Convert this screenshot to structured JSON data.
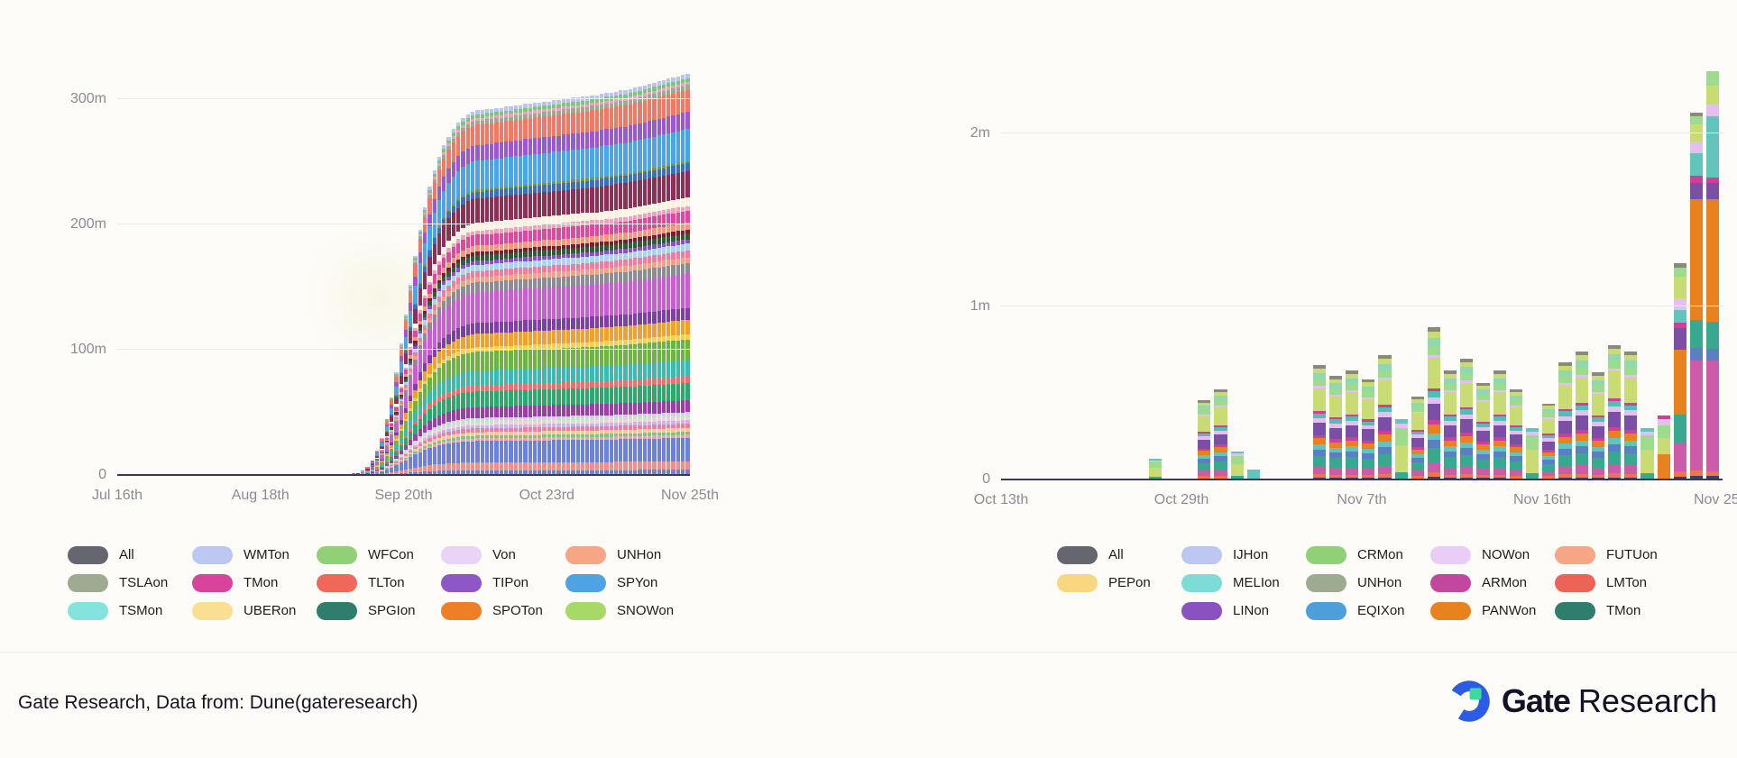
{
  "page": {
    "background": "#fdfcf8"
  },
  "footer": {
    "source_text": "Gate Research, Data from: Dune(gateresearch)",
    "logo": {
      "brand_bold": "Gate",
      "brand_regular": "Research"
    },
    "colors": {
      "logo_blue": "#2c5ce6",
      "logo_green": "#3bdb9e",
      "text": "#131325"
    }
  },
  "chart_data": [
    {
      "id": "cumulative-volume",
      "type": "bar",
      "stacked": true,
      "title": "",
      "y_unit": "millions",
      "ylim": [
        0,
        332
      ],
      "grid": "horizontal",
      "legend_position": "bottom",
      "axis_color": "#3a3a52",
      "tick_text_color": "#8b8b93",
      "y_ticks": [
        {
          "v": 0,
          "label": "0"
        },
        {
          "v": 100,
          "label": "100m"
        },
        {
          "v": 200,
          "label": "200m"
        },
        {
          "v": 300,
          "label": "300m"
        }
      ],
      "x_tick_labels": [
        "Jul 16th",
        "Aug 18th",
        "Sep 20th",
        "Oct 23rd",
        "Nov 25th"
      ],
      "legend_rows": [
        [
          {
            "label": "All",
            "color": "#66666f"
          },
          {
            "label": "WMTon",
            "color": "#bcc8f2"
          },
          {
            "label": "WFCon",
            "color": "#90d077"
          },
          {
            "label": "Von",
            "color": "#e9d4f8"
          },
          {
            "label": "UNHon",
            "color": "#f6a585"
          }
        ],
        [
          {
            "label": "TSLAon",
            "color": "#9dac90"
          },
          {
            "label": "TMon",
            "color": "#d8449c"
          },
          {
            "label": "TLTon",
            "color": "#f0685a"
          },
          {
            "label": "TIPon",
            "color": "#8f56c8"
          },
          {
            "label": "SPYon",
            "color": "#4da3e3"
          }
        ],
        [
          {
            "label": "TSMon",
            "color": "#82e4dc"
          },
          {
            "label": "UBERon",
            "color": "#fadf92"
          },
          {
            "label": "SPGIon",
            "color": "#2f7d6d"
          },
          {
            "label": "SPOTon",
            "color": "#ef7f26"
          },
          {
            "label": "SNOWon",
            "color": "#a6d966"
          }
        ]
      ],
      "totals_m": [
        0,
        0,
        0,
        0,
        0,
        0,
        0,
        0,
        0,
        0,
        0,
        0,
        0,
        0,
        0,
        0,
        0,
        0,
        0,
        0,
        0,
        0,
        0,
        0,
        0,
        0,
        0,
        0,
        0,
        0,
        0,
        0,
        0,
        0,
        0,
        0,
        0,
        0,
        0,
        0,
        0,
        0,
        0,
        0,
        0,
        0.3,
        0.5,
        0.8,
        1.2,
        1.5,
        2,
        4,
        7,
        12,
        20,
        30,
        45,
        62,
        82,
        105,
        128,
        152,
        175,
        196,
        214,
        230,
        243,
        254,
        263,
        270,
        276,
        281,
        285,
        288,
        290,
        291,
        291,
        292,
        292,
        293,
        293,
        294,
        294,
        295,
        295,
        296,
        296,
        297,
        297,
        298,
        298,
        299,
        299,
        300,
        300,
        301,
        301,
        302,
        302,
        303,
        303,
        304,
        305,
        305,
        306,
        307,
        307,
        308,
        309,
        310,
        311,
        312,
        313,
        314,
        315,
        316,
        317,
        318,
        319,
        320
      ],
      "bands": [
        [
          "#6e81d8",
          0.012
        ],
        [
          "#ee8f8f",
          0.02
        ],
        [
          "#6e81d8",
          0.055
        ],
        [
          "#f2a0b8",
          0.007
        ],
        [
          "#7ac87a",
          0.007
        ],
        [
          "#f5c89a",
          0.009
        ],
        [
          "#ee7fa0",
          0.01
        ],
        [
          "#c8b4ee",
          0.008
        ],
        [
          "#f5d0dc",
          0.007
        ],
        [
          "#bfe8c0",
          0.006
        ],
        [
          "#d8c8f0",
          0.006
        ],
        [
          "#9b3fa8",
          0.028
        ],
        [
          "#2fa86e",
          0.04
        ],
        [
          "#f26d6d",
          0.016
        ],
        [
          "#3fb8ae",
          0.038
        ],
        [
          "#6fb344",
          0.048
        ],
        [
          "#f2d052",
          0.012
        ],
        [
          "#f0a030",
          0.034
        ],
        [
          "#7d3fa8",
          0.028
        ],
        [
          "#c75fd0",
          0.08
        ],
        [
          "#8c8c94",
          0.024
        ],
        [
          "#f5a088",
          0.014
        ],
        [
          "#f27ba0",
          0.016
        ],
        [
          "#a8d4f0",
          0.016
        ],
        [
          "#8a4fc8",
          0.01
        ],
        [
          "#2f5d3a",
          0.014
        ],
        [
          "#7a1f2e",
          0.009
        ],
        [
          "#f4977c",
          0.016
        ],
        [
          "#e0489e",
          0.028
        ],
        [
          "#f2a0c0",
          0.011
        ],
        [
          "#fdf3e0",
          0.02
        ],
        [
          "#8e2f55",
          0.062
        ],
        [
          "#3c6fbe",
          0.018
        ],
        [
          "#7a9a3a",
          0.005
        ],
        [
          "#4da3e3",
          0.075
        ],
        [
          "#9b59d0",
          0.04
        ],
        [
          "#f07867",
          0.052
        ],
        [
          "#9cab8f",
          0.011
        ],
        [
          "#f2a0c0",
          0.007
        ],
        [
          "#7ac87a",
          0.009
        ],
        [
          "#b8c4f2",
          0.01
        ]
      ]
    },
    {
      "id": "daily-volume",
      "type": "bar",
      "stacked": true,
      "title": "",
      "y_unit": "millions",
      "ylim": [
        0,
        2.45
      ],
      "grid": "horizontal",
      "legend_position": "bottom",
      "axis_color": "#3a3a52",
      "tick_text_color": "#8b8b93",
      "y_ticks": [
        {
          "v": 0,
          "label": "0"
        },
        {
          "v": 1,
          "label": "1m"
        },
        {
          "v": 2,
          "label": "2m"
        }
      ],
      "x_tick_labels": [
        "Oct 13th",
        "Oct 29th",
        "Nov 7th",
        "Nov 16th",
        "Nov 25th"
      ],
      "legend_rows": [
        [
          {
            "label": "All",
            "color": "#66666f"
          },
          {
            "label": "IJHon",
            "color": "#bcc8f2"
          },
          {
            "label": "CRMon",
            "color": "#90d077"
          },
          {
            "label": "NOWon",
            "color": "#e9cdf7"
          },
          {
            "label": "FUTUon",
            "color": "#f6a585"
          }
        ],
        [
          {
            "label": "PEPon",
            "color": "#f8d77e"
          },
          {
            "label": "MELIon",
            "color": "#7edcd6"
          },
          {
            "label": "UNHon",
            "color": "#9dac90"
          },
          {
            "label": "ARMon",
            "color": "#c4479e"
          },
          {
            "label": "LMTon",
            "color": "#ee6358"
          }
        ],
        [
          null,
          {
            "label": "LINon",
            "color": "#8a52c0"
          },
          {
            "label": "EQIXon",
            "color": "#4d9fdb"
          },
          {
            "label": "PANWon",
            "color": "#e8821e"
          },
          {
            "label": "TMon",
            "color": "#2f7d6d"
          }
        ]
      ],
      "totals_m": [
        0,
        0,
        0,
        0,
        0,
        0,
        0,
        0,
        0,
        0.12,
        0,
        0,
        0.46,
        0.52,
        0.16,
        0.06,
        0,
        0,
        0,
        0.66,
        0.6,
        0.63,
        0.58,
        0.72,
        0.35,
        0.48,
        0.88,
        0.63,
        0.7,
        0.56,
        0.63,
        0.52,
        0.3,
        0.44,
        0.68,
        0.74,
        0.62,
        0.78,
        0.74,
        0.3,
        0.37,
        1.25,
        2.12,
        2.36
      ],
      "default_mix": [
        [
          "#3a3f66",
          0.015
        ],
        [
          "#f2744f",
          0.03
        ],
        [
          "#cc5ca8",
          0.065
        ],
        [
          "#38a88e",
          0.095
        ],
        [
          "#5b7fc4",
          0.055
        ],
        [
          "#62c4bc",
          0.045
        ],
        [
          "#e8821e",
          0.055
        ],
        [
          "#cf3f96",
          0.03
        ],
        [
          "#7b4fa6",
          0.11
        ],
        [
          "#e3c0f0",
          0.04
        ],
        [
          "#52bfb4",
          0.04
        ],
        [
          "#cf3f96",
          0.02
        ],
        [
          "#c9dc74",
          0.2
        ],
        [
          "#e3c0f0",
          0.02
        ],
        [
          "#9cdc8c",
          0.06
        ],
        [
          "#8fd8b0",
          0.05
        ],
        [
          "#c9dc74",
          0.04
        ],
        [
          "#8a8a7a",
          0.03
        ]
      ],
      "mixes": {
        "small_green": [
          [
            "#3a3f66",
            0.02
          ],
          [
            "#38a88e",
            0.1
          ],
          [
            "#c9dc74",
            0.45
          ],
          [
            "#9cdc8c",
            0.28
          ],
          [
            "#e3c0f0",
            0.08
          ],
          [
            "#62c4bc",
            0.07
          ]
        ],
        "small_cyan": [
          [
            "#62c4bc",
            1.0
          ]
        ],
        "orange_bottom": [
          [
            "#e8821e",
            0.4
          ],
          [
            "#c9dc74",
            0.25
          ],
          [
            "#9cdc8c",
            0.2
          ],
          [
            "#e3c0f0",
            0.1
          ],
          [
            "#cf3f96",
            0.05
          ]
        ],
        "tall1": [
          [
            "#3a3f66",
            0.012
          ],
          [
            "#f2744f",
            0.025
          ],
          [
            "#cc5ca8",
            0.135
          ],
          [
            "#38a88e",
            0.13
          ],
          [
            "#e8821e",
            0.3
          ],
          [
            "#7b4fa6",
            0.1
          ],
          [
            "#cf3f96",
            0.022
          ],
          [
            "#62c4bc",
            0.06
          ],
          [
            "#e3c0f0",
            0.055
          ],
          [
            "#c9dc74",
            0.1
          ],
          [
            "#9cdc8c",
            0.04
          ],
          [
            "#8a8a7a",
            0.021
          ]
        ],
        "tall2": [
          [
            "#3a3f66",
            0.01
          ],
          [
            "#f2744f",
            0.015
          ],
          [
            "#cc5ca8",
            0.3
          ],
          [
            "#5b7fc4",
            0.035
          ],
          [
            "#38a88e",
            0.075
          ],
          [
            "#e8821e",
            0.33
          ],
          [
            "#7b4fa6",
            0.045
          ],
          [
            "#cf3f96",
            0.018
          ],
          [
            "#62c4bc",
            0.062
          ],
          [
            "#e3c0f0",
            0.032
          ],
          [
            "#c9dc74",
            0.048
          ],
          [
            "#9cdc8c",
            0.02
          ],
          [
            "#8a8a7a",
            0.01
          ]
        ],
        "tall3": [
          [
            "#3a3f66",
            0.008
          ],
          [
            "#f2744f",
            0.013
          ],
          [
            "#cc5ca8",
            0.27
          ],
          [
            "#5b7fc4",
            0.03
          ],
          [
            "#38a88e",
            0.065
          ],
          [
            "#e8821e",
            0.3
          ],
          [
            "#7b4fa6",
            0.04
          ],
          [
            "#cf3f96",
            0.014
          ],
          [
            "#62c4bc",
            0.15
          ],
          [
            "#e3c0f0",
            0.03
          ],
          [
            "#c9dc74",
            0.045
          ],
          [
            "#9cdc8c",
            0.035
          ]
        ]
      },
      "mix_overrides": {
        "9": "small_green",
        "14": "small_green",
        "15": "small_cyan",
        "24": "small_green",
        "32": "small_green",
        "39": "small_green",
        "40": "orange_bottom",
        "41": "tall1",
        "42": "tall2",
        "43": "tall3"
      }
    }
  ]
}
